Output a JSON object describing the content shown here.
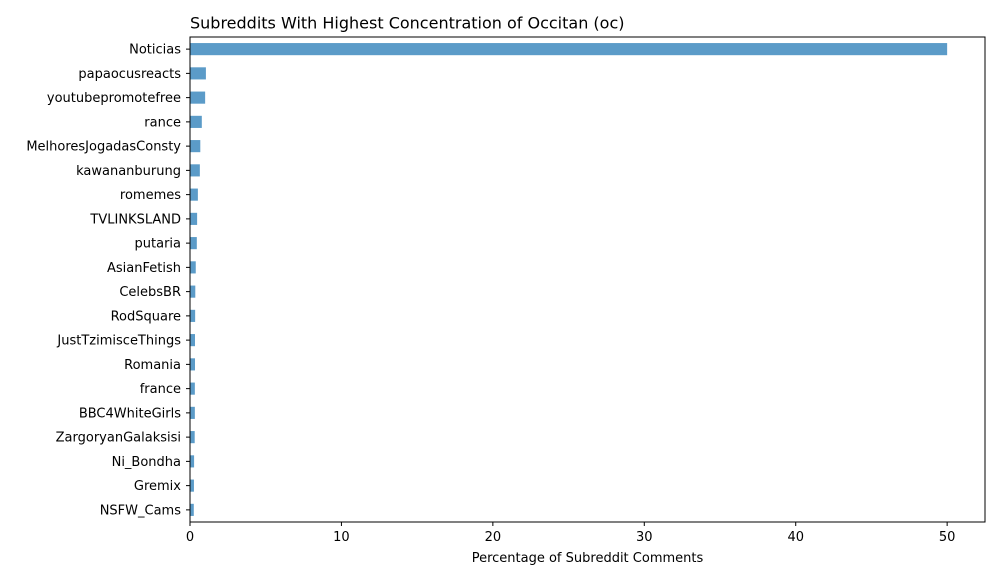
{
  "chart_data": {
    "type": "bar",
    "orientation": "horizontal",
    "title": "Subreddits With Highest Concentration of Occitan (oc)",
    "xlabel": "Percentage of Subreddit Comments",
    "ylabel": "",
    "xlim": [
      0,
      52.5
    ],
    "xticks": [
      0,
      10,
      20,
      30,
      40,
      50
    ],
    "grid": false,
    "bar_color": "#5b9bc8",
    "categories": [
      "Noticias",
      "papaocusreacts",
      "youtubepromotefree",
      "rance",
      "MelhoresJogadasConsty",
      "kawananburung",
      "romemes",
      "TVLINKSLAND",
      "putaria",
      "AsianFetish",
      "CelebsBR",
      "RodSquare",
      "JustTzimisceThings",
      "Romania",
      "france",
      "BBC4WhiteGirls",
      "ZargoryanGalaksisi",
      "Ni_Bondha",
      "Gremix",
      "NSFW_Cams"
    ],
    "values": [
      50.0,
      1.05,
      1.0,
      0.78,
      0.68,
      0.65,
      0.52,
      0.47,
      0.45,
      0.38,
      0.35,
      0.34,
      0.33,
      0.33,
      0.32,
      0.32,
      0.31,
      0.27,
      0.26,
      0.25
    ]
  }
}
